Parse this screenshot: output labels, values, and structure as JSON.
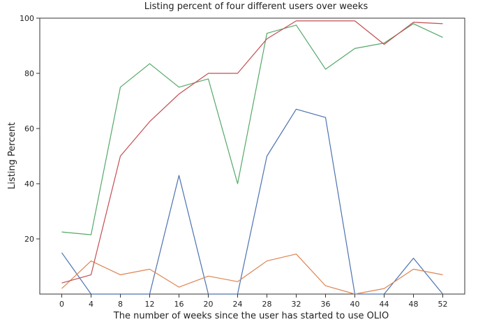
{
  "chart_data": {
    "type": "line",
    "title": "Listing percent of four different users over weeks",
    "xlabel": "The number of weeks since the user has started to use OLIO",
    "ylabel": "Listing Percent",
    "x": [
      0,
      4,
      8,
      12,
      16,
      20,
      24,
      28,
      32,
      36,
      40,
      44,
      48,
      52
    ],
    "xticks": [
      "0",
      "4",
      "8",
      "12",
      "16",
      "20",
      "24",
      "28",
      "32",
      "36",
      "40",
      "44",
      "48",
      "52"
    ],
    "yticks": [
      "20",
      "40",
      "60",
      "80",
      "100"
    ],
    "xlim": [
      -3,
      55
    ],
    "ylim": [
      0,
      100
    ],
    "grid": false,
    "series": [
      {
        "color": "#4c72b0",
        "values": [
          15,
          0,
          0,
          0,
          43,
          0,
          0,
          50,
          67,
          64,
          0,
          0,
          13,
          0
        ]
      },
      {
        "color": "#dd8452",
        "values": [
          2,
          12,
          7,
          9,
          2.5,
          6.5,
          4.5,
          12,
          14.5,
          3,
          0,
          2,
          9,
          7
        ]
      },
      {
        "color": "#55a868",
        "values": [
          22.5,
          21.5,
          75,
          83.5,
          75,
          78,
          40,
          94.5,
          97.5,
          81.5,
          89,
          91,
          98,
          93
        ]
      },
      {
        "color": "#c44e52",
        "values": [
          4,
          7,
          50,
          62.5,
          72.5,
          80,
          80,
          92.5,
          99,
          99,
          99,
          90.5,
          98.5,
          98
        ]
      }
    ]
  }
}
